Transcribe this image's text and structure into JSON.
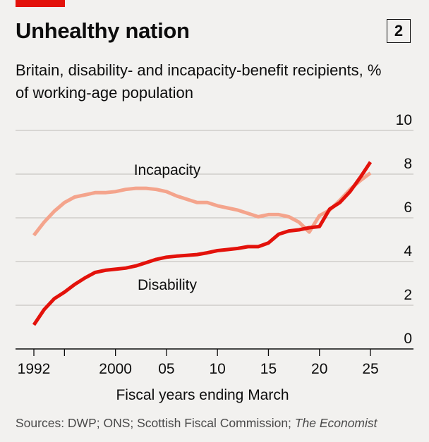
{
  "title": "Unhealthy nation",
  "badge": "2",
  "subtitle": "Britain, disability- and incapacity-benefit recipients, % of working-age population",
  "source": {
    "text": "Sources: DWP; ONS; Scottish Fiscal Commission; ",
    "italic": "The Economist"
  },
  "chart_data": {
    "type": "line",
    "xlabel": "Fiscal years ending March",
    "ylabel": "",
    "xlim": [
      1991,
      2028
    ],
    "ylim": [
      0,
      10
    ],
    "y_ticks": [
      0,
      2,
      4,
      6,
      8,
      10
    ],
    "x_ticks": [
      {
        "value": 1992,
        "label": "1992"
      },
      {
        "value": 1995,
        "label": ""
      },
      {
        "value": 2000,
        "label": "2000"
      },
      {
        "value": 2005,
        "label": "05"
      },
      {
        "value": 2010,
        "label": "10"
      },
      {
        "value": 2015,
        "label": "15"
      },
      {
        "value": 2020,
        "label": "20"
      },
      {
        "value": 2025,
        "label": "25"
      }
    ],
    "grid": true,
    "series": [
      {
        "name": "Incapacity",
        "color": "#f4a48c",
        "x": [
          1992,
          1993,
          1994,
          1995,
          1996,
          1997,
          1998,
          1999,
          2000,
          2001,
          2002,
          2003,
          2004,
          2005,
          2006,
          2007,
          2008,
          2009,
          2010,
          2011,
          2012,
          2013,
          2014,
          2015,
          2016,
          2017,
          2018,
          2019,
          2020,
          2021,
          2022,
          2023,
          2024,
          2025
        ],
        "y": [
          5.2,
          5.8,
          6.3,
          6.7,
          6.95,
          7.05,
          7.15,
          7.15,
          7.2,
          7.3,
          7.35,
          7.35,
          7.3,
          7.2,
          7.0,
          6.85,
          6.7,
          6.7,
          6.55,
          6.45,
          6.35,
          6.2,
          6.05,
          6.15,
          6.15,
          6.05,
          5.8,
          5.35,
          6.1,
          6.35,
          6.8,
          7.3,
          7.7,
          8.05
        ]
      },
      {
        "name": "Disability",
        "color": "#e3120b",
        "x": [
          1992,
          1993,
          1994,
          1995,
          1996,
          1997,
          1998,
          1999,
          2000,
          2001,
          2002,
          2003,
          2004,
          2005,
          2006,
          2007,
          2008,
          2009,
          2010,
          2011,
          2012,
          2013,
          2014,
          2015,
          2016,
          2017,
          2018,
          2019,
          2020,
          2021,
          2022,
          2023,
          2024,
          2025
        ],
        "y": [
          1.1,
          1.8,
          2.3,
          2.6,
          2.95,
          3.25,
          3.5,
          3.6,
          3.65,
          3.7,
          3.8,
          3.95,
          4.1,
          4.2,
          4.25,
          4.28,
          4.32,
          4.4,
          4.5,
          4.55,
          4.6,
          4.68,
          4.68,
          4.85,
          5.25,
          5.4,
          5.45,
          5.55,
          5.6,
          6.4,
          6.7,
          7.2,
          7.85,
          8.55
        ]
      }
    ]
  }
}
